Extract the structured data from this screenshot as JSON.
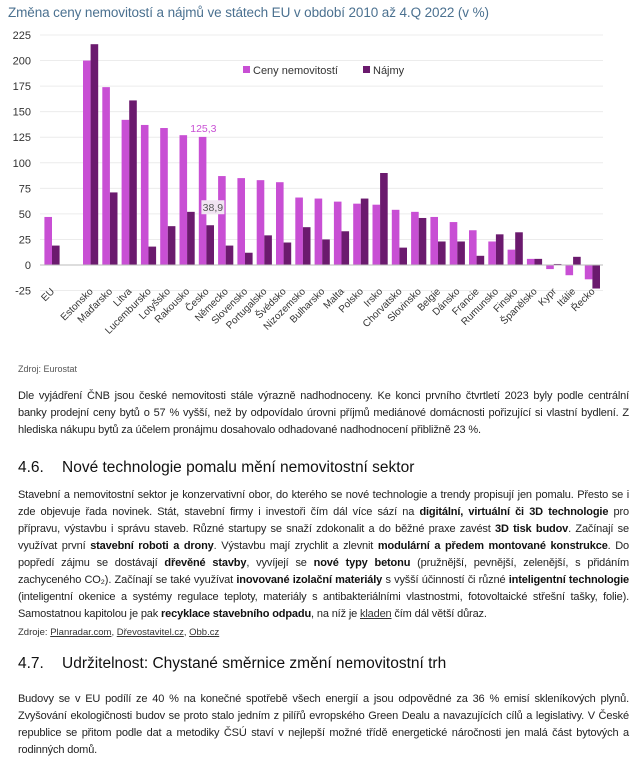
{
  "chart_data": {
    "type": "bar",
    "title": "Změna ceny nemovitostí a nájmů ve státech EU v období 2010 až 4.Q 2022 (v %)",
    "categories": [
      "EU",
      "",
      "Estonsko",
      "Maďarsko",
      "Litva",
      "Lucembursko",
      "Lotyšsko",
      "Rakousko",
      "Česko",
      "Německo",
      "Slovensko",
      "Portugalsko",
      "Švédsko",
      "Nizozemsko",
      "Bulharsko",
      "Malta",
      "Polsko",
      "Irsko",
      "Chorvatsko",
      "Slovinsko",
      "Belgie",
      "Dánsko",
      "Francie",
      "Rumunsko",
      "Finsko",
      "Španělsko",
      "Kypr",
      "Itálie",
      "Řecko"
    ],
    "series": [
      {
        "name": "Ceny nemovitostí",
        "color": "#c84fd4",
        "values": [
          47,
          null,
          200,
          174,
          142,
          137,
          134,
          127,
          125.3,
          87,
          85,
          83,
          81,
          66,
          65,
          62,
          60,
          59,
          54,
          52,
          47,
          42,
          34,
          23,
          15,
          6,
          -4,
          -10,
          -14
        ]
      },
      {
        "name": "Nájmy",
        "color": "#6b1a6e",
        "values": [
          19,
          null,
          216,
          71,
          161,
          18,
          38,
          52,
          38.9,
          19,
          12,
          29,
          22,
          37,
          25,
          33,
          65,
          90,
          17,
          46,
          23,
          23,
          9,
          30,
          32,
          6,
          1,
          8,
          -23
        ]
      }
    ],
    "ylim": [
      -25,
      225
    ],
    "yticks": [
      "-25",
      "0",
      "25",
      "50",
      "75",
      "100",
      "125",
      "150",
      "175",
      "200",
      "225"
    ],
    "grid": true,
    "legend": "top-right",
    "data_labels": [
      {
        "text": "125,3",
        "series": 0,
        "category": "Česko"
      },
      {
        "text": "38,9",
        "series": 1,
        "category": "Česko"
      }
    ]
  },
  "chart_source": "Zdroj: Eurostat",
  "paragraph1": [
    {
      "t": "Dle vyjádření ČNB jsou české nemovitosti stále výrazně nadhodnoceny. Ke konci prvního čtvrtletí 2023 byly podle centrální banky prodejní ceny bytů o 57 % vyšší, než by odpovídalo úrovni příjmů mediánové domácnosti pořizující si vlastní bydlení. Z hlediska nákupu bytů za účelem pronájmu dosahovalo odhadované nadhodnocení přibližně 23 %."
    }
  ],
  "section46": {
    "number": "4.6.",
    "title": "Nové technologie pomalu mění nemovitostní sektor"
  },
  "paragraph2": [
    {
      "t": "Stavební a nemovitostní sektor je konzervativní obor, do kterého se nové technologie a trendy propisují jen pomalu. Přesto se i zde objevuje řada novinek. Stát, stavební firmy i investoři čím dál více sází na "
    },
    {
      "t": "digitální, virtuální či 3D technologie",
      "b": true
    },
    {
      "t": " pro přípravu, výstavbu i správu staveb. Různé startupy se snaží zdokonalit a do běžné praxe zavést "
    },
    {
      "t": "3D tisk budov",
      "b": true
    },
    {
      "t": ". Začínají se využívat první "
    },
    {
      "t": "stavební roboti a drony",
      "b": true
    },
    {
      "t": ". Výstavbu mají zrychlit a zlevnit "
    },
    {
      "t": "modulární a předem montované konstrukce",
      "b": true
    },
    {
      "t": ". Do popředí zájmu se dostávají "
    },
    {
      "t": "dřevěné stavby",
      "b": true
    },
    {
      "t": ", vyvíjejí se "
    },
    {
      "t": "nové typy betonu",
      "b": true
    },
    {
      "t": " (pružnější, pevnější, zelenější, s přidáním zachyceného CO₂). Začínají se také využívat "
    },
    {
      "t": "inovované izolační materiály",
      "b": true
    },
    {
      "t": " s vyšší účinností či různé "
    },
    {
      "t": "inteligentní technologie",
      "b": true
    },
    {
      "t": " (inteligentní okenice a systémy regulace teploty, materiály s antibakteriálními vlastnostmi, fotovoltaické střešní tašky, folie). Samostatnou kapitolou je pak "
    },
    {
      "t": "recyklace stavebního odpadu",
      "b": true
    },
    {
      "t": ", na níž je "
    },
    {
      "t": "kladen",
      "link": true
    },
    {
      "t": " čím dál větší důraz."
    }
  ],
  "sources46": {
    "label": "Zdroje: ",
    "links": [
      "Planradar.com",
      "Dřevostavitel.cz",
      "Obb.cz"
    ]
  },
  "section47": {
    "number": "4.7.",
    "title": "Udržitelnost: Chystané směrnice změní nemovitostní trh"
  },
  "paragraph3": [
    {
      "t": "Budovy se v EU podílí ze 40 % na konečné spotřebě všech energií a jsou odpovědné za 36 % emisí skleníkových plynů. Zvyšování ekologičnosti budov se proto stalo jedním z pilířů evropského Green Dealu a navazujících cílů a legislativy. V České republice se přitom podle dat a metodiky ČSÚ staví v nejlepší možné třídě energetické náročnosti jen malá část bytových a rodinných domů."
    }
  ]
}
